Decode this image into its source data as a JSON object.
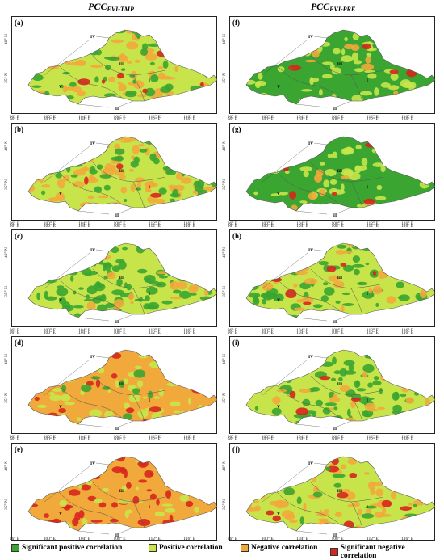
{
  "columns": {
    "left": {
      "main": "PCC",
      "sub": "EVI-TMP"
    },
    "right": {
      "main": "PCC",
      "sub": "EVI-PRE"
    }
  },
  "panels": [
    {
      "label": "(a)",
      "scheme": "tmp_mixed"
    },
    {
      "label": "(b)",
      "scheme": "tmp_mixed"
    },
    {
      "label": "(c)",
      "scheme": "tmp_positive"
    },
    {
      "label": "(d)",
      "scheme": "tmp_negative"
    },
    {
      "label": "(e)",
      "scheme": "tmp_strong_negative"
    },
    {
      "label": "(f)",
      "scheme": "pre_positive"
    },
    {
      "label": "(g)",
      "scheme": "pre_positive"
    },
    {
      "label": "(h)",
      "scheme": "pre_mixed"
    },
    {
      "label": "(i)",
      "scheme": "pre_mixed"
    },
    {
      "label": "(j)",
      "scheme": "pre_negative"
    }
  ],
  "region_labels": [
    "I",
    "II",
    "III",
    "IV",
    "V"
  ],
  "x_ticks": [
    "96° E",
    "100° E",
    "104° E",
    "108° E",
    "112° E",
    "116° E"
  ],
  "y_ticks": [
    "40° N",
    "35° N"
  ],
  "colors": {
    "sig_pos": "#3aa531",
    "pos": "#c7e54b",
    "neg": "#f2a93b",
    "sig_neg": "#d7261e",
    "boundary": "#555555"
  },
  "legend": [
    {
      "label": "Significant positive correlation",
      "color": "#3aa531"
    },
    {
      "label": "Positive correlation",
      "color": "#c7e54b"
    },
    {
      "label": "Negative correlation",
      "color": "#f2a93b"
    },
    {
      "label": "Significant negative correlation",
      "color": "#d7261e"
    }
  ]
}
